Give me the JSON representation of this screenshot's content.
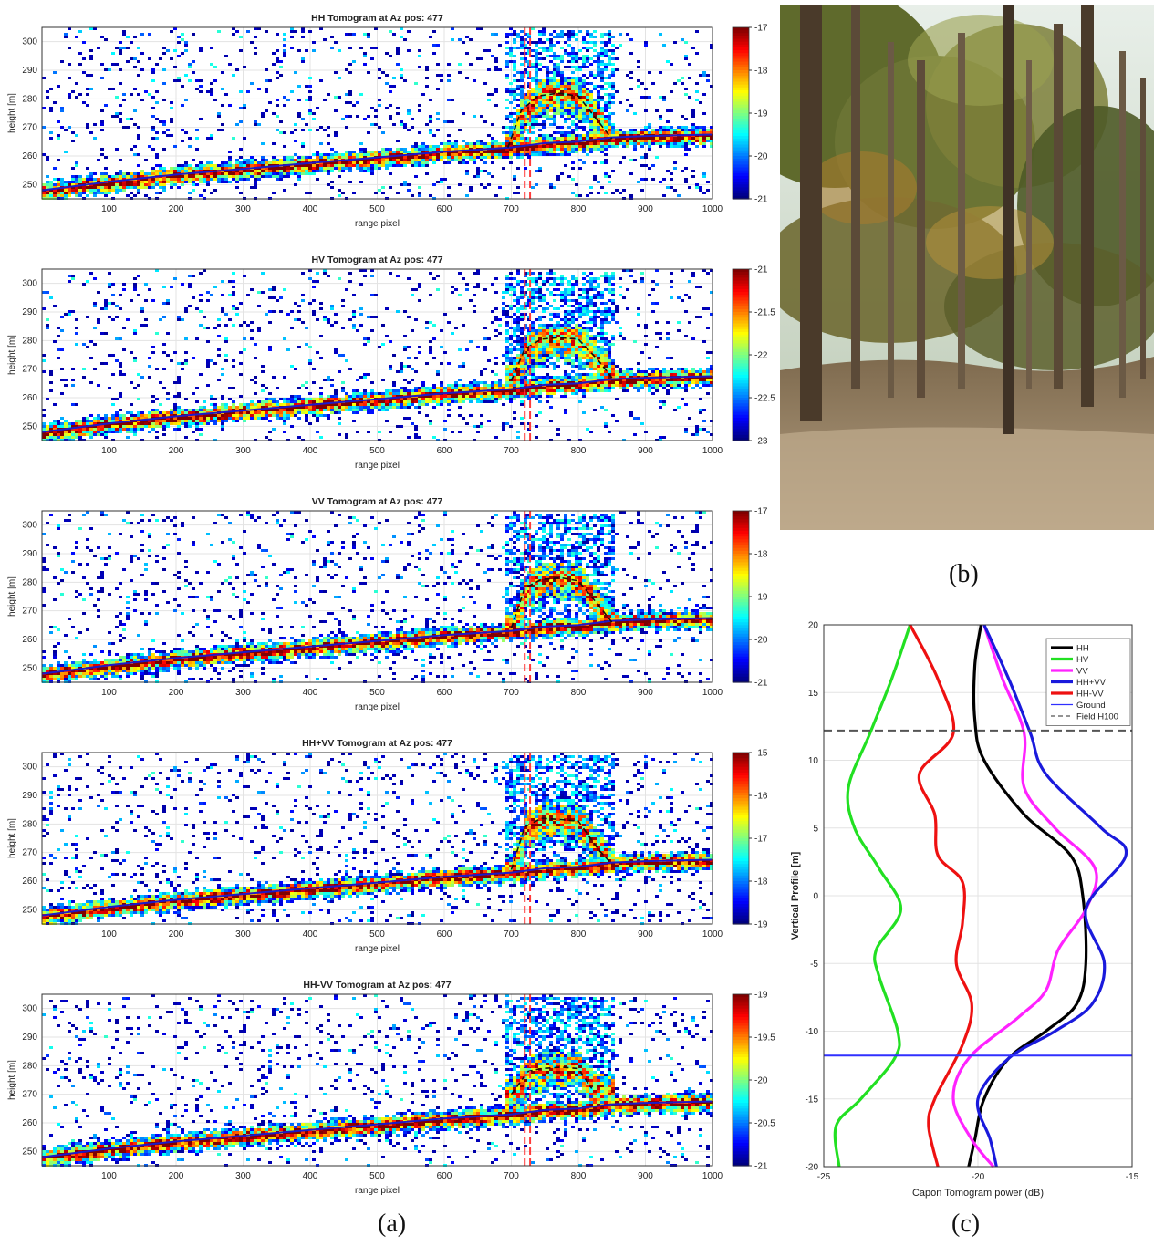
{
  "panel_labels": {
    "a": "(a)",
    "b": "(b)",
    "c": "(c)"
  },
  "chart_data": [
    {
      "type": "heatmap",
      "title": "HH Tomogram at Az pos: 477",
      "xlabel": "range pixel",
      "ylabel": "height [m]",
      "xlim": [
        0,
        1000
      ],
      "ylim": [
        245,
        305
      ],
      "xticks": [
        100,
        200,
        300,
        400,
        500,
        600,
        700,
        800,
        900,
        1000
      ],
      "yticks": [
        250,
        260,
        270,
        280,
        290,
        300
      ],
      "colorbar": {
        "ticks": [
          -17,
          -18,
          -19,
          -20,
          -21
        ],
        "range": [
          -21,
          -17
        ]
      },
      "ground_line": {
        "x": [
          0,
          100,
          200,
          300,
          400,
          500,
          600,
          700,
          750,
          800,
          850,
          900,
          1000
        ],
        "y": [
          248,
          251,
          253.5,
          255.5,
          257.5,
          259.5,
          261.5,
          263,
          264.5,
          265,
          266.5,
          267,
          267.5
        ]
      },
      "canopy_line": {
        "x": [
          695,
          715,
          740,
          770,
          800,
          830,
          850
        ],
        "y": [
          263,
          276,
          281,
          282,
          281,
          272,
          266
        ]
      },
      "field_markers": [
        720,
        728
      ]
    },
    {
      "type": "heatmap",
      "title": "HV Tomogram at Az pos: 477",
      "xlabel": "range pixel",
      "ylabel": "height [m]",
      "xlim": [
        0,
        1000
      ],
      "ylim": [
        245,
        305
      ],
      "xticks": [
        100,
        200,
        300,
        400,
        500,
        600,
        700,
        800,
        900,
        1000
      ],
      "yticks": [
        250,
        260,
        270,
        280,
        290,
        300
      ],
      "colorbar": {
        "ticks": [
          -21,
          -21.5,
          -22,
          -22.5,
          -23
        ],
        "range": [
          -23,
          -21
        ]
      },
      "ground_line": {
        "x": [
          0,
          100,
          200,
          300,
          400,
          500,
          600,
          700,
          750,
          800,
          850,
          900,
          1000
        ],
        "y": [
          248,
          251,
          253.5,
          255.5,
          257.5,
          259.5,
          261.5,
          263,
          264.5,
          265,
          266.5,
          267,
          267.5
        ]
      },
      "canopy_line": {
        "x": [
          700,
          720,
          745,
          770,
          800,
          830,
          850
        ],
        "y": [
          266,
          277,
          280.5,
          281,
          280.5,
          273,
          267
        ]
      },
      "field_markers": [
        720,
        728
      ]
    },
    {
      "type": "heatmap",
      "title": "VV Tomogram at Az pos: 477",
      "xlabel": "range pixel",
      "ylabel": "height [m]",
      "xlim": [
        0,
        1000
      ],
      "ylim": [
        245,
        305
      ],
      "xticks": [
        100,
        200,
        300,
        400,
        500,
        600,
        700,
        800,
        900,
        1000
      ],
      "yticks": [
        250,
        260,
        270,
        280,
        290,
        300
      ],
      "colorbar": {
        "ticks": [
          -17,
          -18,
          -19,
          -20,
          -21
        ],
        "range": [
          -21,
          -17
        ]
      },
      "ground_line": {
        "x": [
          0,
          100,
          200,
          300,
          400,
          500,
          600,
          700,
          750,
          800,
          850,
          900,
          1000
        ],
        "y": [
          248,
          251,
          253.5,
          255.5,
          257.5,
          259.5,
          261.5,
          263,
          264.5,
          265,
          266.5,
          267,
          267.5
        ]
      },
      "canopy_line": {
        "x": [
          700,
          720,
          745,
          775,
          800,
          830,
          850
        ],
        "y": [
          264,
          278,
          281,
          281.5,
          280.5,
          272,
          266
        ]
      },
      "field_markers": [
        720,
        728
      ]
    },
    {
      "type": "heatmap",
      "title": "HH+VV Tomogram at Az pos: 477",
      "xlabel": "range pixel",
      "ylabel": "height [m]",
      "xlim": [
        0,
        1000
      ],
      "ylim": [
        245,
        305
      ],
      "xticks": [
        100,
        200,
        300,
        400,
        500,
        600,
        700,
        800,
        900,
        1000
      ],
      "yticks": [
        250,
        260,
        270,
        280,
        290,
        300
      ],
      "colorbar": {
        "ticks": [
          -15,
          -16,
          -17,
          -18,
          -19
        ],
        "range": [
          -19,
          -15
        ]
      },
      "ground_line": {
        "x": [
          0,
          100,
          200,
          300,
          400,
          500,
          600,
          700,
          750,
          800,
          850,
          900,
          1000
        ],
        "y": [
          248,
          251,
          253.5,
          255.5,
          257.5,
          259.5,
          261.5,
          263,
          264.5,
          265,
          266.5,
          267,
          267.5
        ]
      },
      "canopy_line": {
        "x": [
          700,
          720,
          745,
          775,
          800,
          830,
          850
        ],
        "y": [
          264,
          279,
          282,
          281.5,
          281,
          271,
          266
        ]
      },
      "field_markers": [
        720,
        728
      ]
    },
    {
      "type": "heatmap",
      "title": "HH-VV Tomogram at Az pos: 477",
      "xlabel": "range pixel",
      "ylabel": "height [m]",
      "xlim": [
        0,
        1000
      ],
      "ylim": [
        245,
        305
      ],
      "xticks": [
        100,
        200,
        300,
        400,
        500,
        600,
        700,
        800,
        900,
        1000
      ],
      "yticks": [
        250,
        260,
        270,
        280,
        290,
        300
      ],
      "colorbar": {
        "ticks": [
          -19,
          -19.5,
          -20,
          -20.5,
          -21
        ],
        "range": [
          -21,
          -19
        ]
      },
      "ground_line": {
        "x": [
          0,
          100,
          200,
          300,
          400,
          500,
          600,
          700,
          750,
          800,
          850,
          900,
          1000
        ],
        "y": [
          248,
          251,
          253.5,
          255.5,
          257.5,
          259.5,
          261.5,
          263,
          264.5,
          265,
          266.5,
          267,
          267.5
        ]
      },
      "canopy_line": {
        "x": [
          700,
          725,
          745,
          775,
          800,
          820
        ],
        "y": [
          270,
          278,
          279,
          279.5,
          279,
          272
        ]
      },
      "field_markers": [
        720,
        728
      ]
    },
    {
      "type": "line",
      "xlabel": "Capon Tomogram power (dB)",
      "ylabel": "Vertical Profile [m]",
      "xlim": [
        -25,
        -15
      ],
      "ylim": [
        -20,
        20
      ],
      "xticks": [
        -25,
        -20,
        -15
      ],
      "yticks": [
        20,
        15,
        10,
        5,
        0,
        -5,
        -10,
        -15,
        -20
      ],
      "series": [
        {
          "name": "HH",
          "color": "#000000",
          "x": [
            -20.3,
            -20.1,
            -19.8,
            -19,
            -17.8,
            -16.8,
            -16.5,
            -16.6,
            -17,
            -18.5,
            -19.8,
            -20.1,
            -20.1,
            -19.9
          ],
          "y": [
            -20,
            -18,
            -15,
            -12,
            -10,
            -8,
            -5,
            0,
            3,
            6,
            10,
            13,
            17,
            20
          ]
        },
        {
          "name": "HV",
          "color": "#22e022",
          "x": [
            -24.5,
            -24.6,
            -23.8,
            -22.7,
            -22.6,
            -23.2,
            -23.3,
            -22.5,
            -23.2,
            -24,
            -24.2,
            -23.5,
            -22.8,
            -22.2
          ],
          "y": [
            -20,
            -17,
            -15,
            -12,
            -10,
            -6,
            -4,
            -1,
            2,
            5,
            8,
            12,
            16,
            20
          ]
        },
        {
          "name": "VV",
          "color": "#ff22ff",
          "x": [
            -19.5,
            -20.2,
            -20.8,
            -20.3,
            -18.7,
            -17.8,
            -17.4,
            -16.5,
            -16.2,
            -17.5,
            -18.5,
            -18.5,
            -19.2,
            -19.8
          ],
          "y": [
            -20,
            -18,
            -15,
            -12,
            -9,
            -7,
            -4,
            -1,
            2,
            5,
            8,
            12,
            16,
            20
          ]
        },
        {
          "name": "HH+VV",
          "color": "#1a1adc",
          "x": [
            -19.4,
            -19.6,
            -20,
            -19,
            -17.5,
            -16.3,
            -15.9,
            -16.5,
            -15.2,
            -16,
            -17.8,
            -18.3,
            -19,
            -19.8
          ],
          "y": [
            -20,
            -18,
            -15,
            -12,
            -10,
            -8,
            -5,
            -1,
            3,
            5,
            9,
            12,
            16,
            20
          ]
        },
        {
          "name": "HH-VV",
          "color": "#ee1111",
          "x": [
            -21.3,
            -21.6,
            -21.4,
            -20.5,
            -20.2,
            -20.7,
            -20.5,
            -20.5,
            -21.3,
            -21.4,
            -21.9,
            -20.8,
            -21.3,
            -22.2
          ],
          "y": [
            -20,
            -17,
            -15,
            -11,
            -8,
            -5,
            -2,
            1,
            3,
            6,
            9,
            12,
            16,
            20
          ]
        },
        {
          "name": "Ground",
          "color": "#3030ff",
          "x": [
            -25,
            -15
          ],
          "y": [
            -11.8,
            -11.8
          ]
        },
        {
          "name": "Field H100",
          "color": "#555555",
          "x": [
            -25,
            -15
          ],
          "y": [
            12.2,
            12.2
          ]
        }
      ],
      "legend_position": "top-right"
    }
  ]
}
